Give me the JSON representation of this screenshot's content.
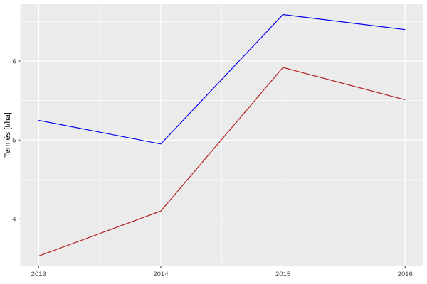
{
  "chart_data": {
    "type": "line",
    "title": "",
    "xlabel": "",
    "ylabel": "Termés [t/ha]",
    "x": [
      2013,
      2014,
      2015,
      2016
    ],
    "x_tick_labels": [
      "2013",
      "2014",
      "2015",
      "2016"
    ],
    "y_ticks": [
      4,
      5,
      6
    ],
    "y_tick_labels": [
      "4",
      "5",
      "6"
    ],
    "x_minor_ticks": [
      2013.5,
      2014.5,
      2015.5
    ],
    "y_minor_ticks": [
      3.5,
      4.5,
      5.5,
      6.5
    ],
    "xlim": [
      2012.85,
      2016.15
    ],
    "ylim": [
      3.4,
      6.73
    ],
    "series": [
      {
        "name": "blue",
        "color": "#0000EE",
        "values": [
          5.25,
          4.95,
          6.59,
          6.4
        ]
      },
      {
        "name": "red",
        "color": "#B22222",
        "values": [
          3.53,
          4.1,
          5.92,
          5.51
        ]
      }
    ],
    "legend": "none",
    "grid": "major-and-minor",
    "panel_background": "#EBEBEB",
    "gridline_color": "#FFFFFF",
    "tick_label_color": "#4D4D4D",
    "tick_mark_color": "#333333",
    "page_background": "#FFFFFF"
  }
}
